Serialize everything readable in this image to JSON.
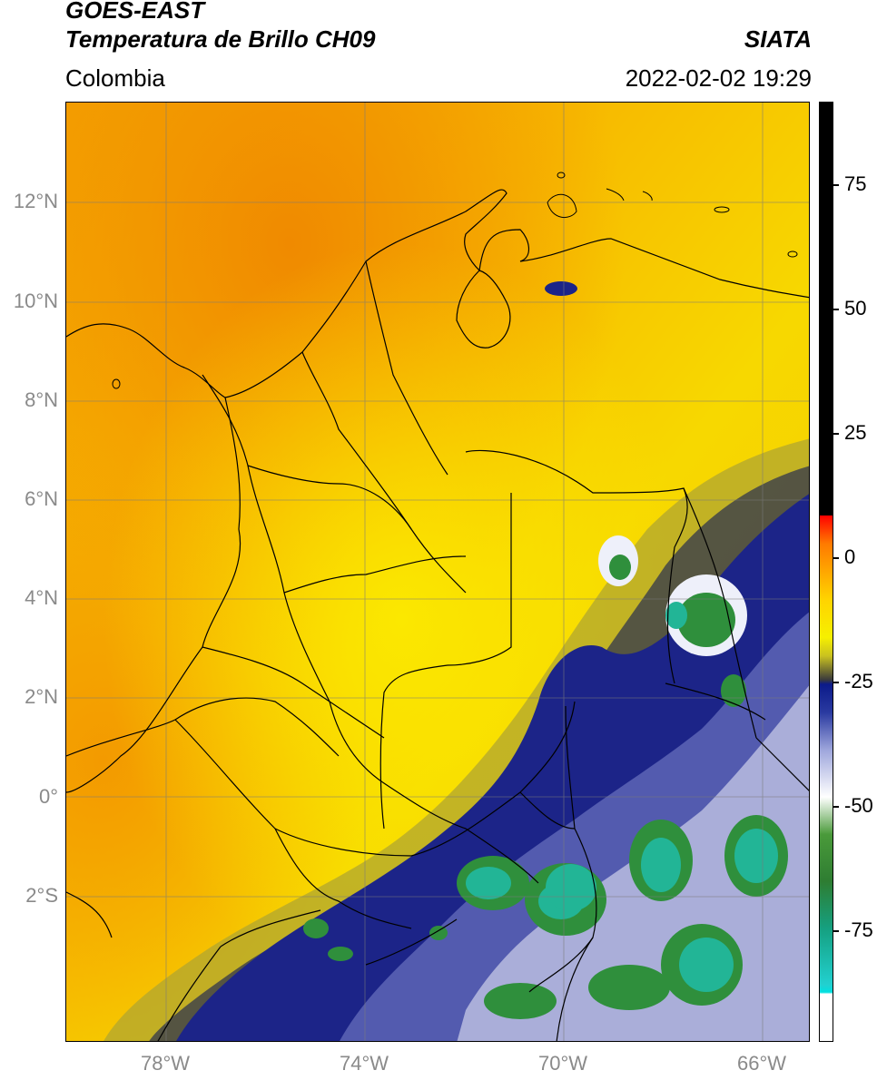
{
  "header": {
    "title_line1": "GOES-EAST",
    "title_line2": "Temperatura de Brillo CH09",
    "source": "SIATA",
    "region": "Colombia",
    "datetime": "2022-02-02 19:29"
  },
  "axes": {
    "lat_labels": [
      "12°N",
      "10°N",
      "8°N",
      "6°N",
      "4°N",
      "2°N",
      "0°",
      "2°S"
    ],
    "lon_labels": [
      "78°W",
      "74°W",
      "70°W",
      "66°W"
    ]
  },
  "colorbar": {
    "labels": [
      "75",
      "50",
      "25",
      "0",
      "-25",
      "-50",
      "-75"
    ],
    "range": [
      -95,
      90
    ]
  },
  "colors": {
    "warm_orange": "#f5a000",
    "yellow": "#f7e600",
    "cloud_navy": "#16207e",
    "cold_green": "#2f8f3c",
    "cold_teal": "#22b596"
  }
}
